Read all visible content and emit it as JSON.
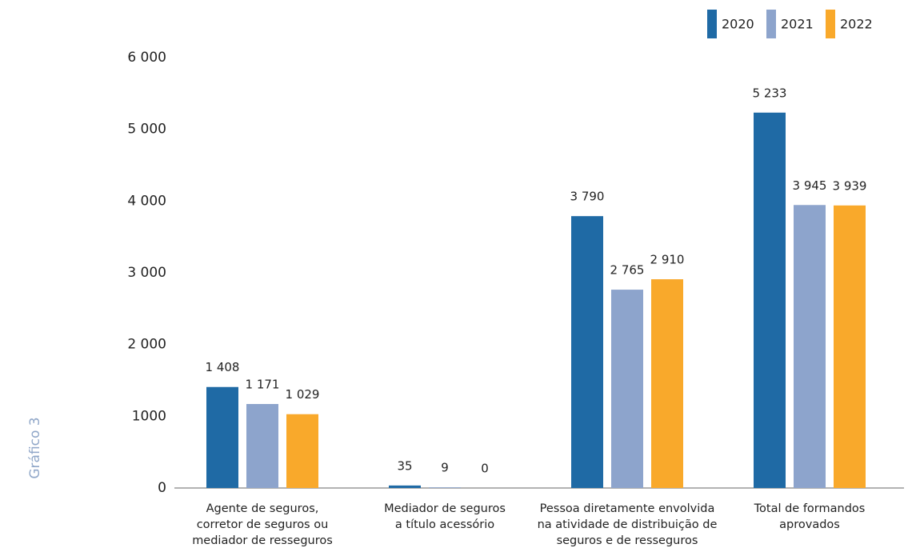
{
  "chart_data": {
    "type": "bar",
    "side_label": "Gráfico 3",
    "categories": [
      [
        "Agente de seguros,",
        "corretor de seguros ou",
        "mediador de resseguros"
      ],
      [
        "Mediador de seguros",
        "a título acessório"
      ],
      [
        "Pessoa diretamente envolvida",
        "na atividade de distribuição de",
        "seguros e de resseguros"
      ],
      [
        "Total de formandos",
        "aprovados"
      ]
    ],
    "series": [
      {
        "name": "2020",
        "color": "#1f6aa5",
        "values": [
          1408,
          35,
          3790,
          5233
        ],
        "value_labels": [
          "1 408",
          "35",
          "3 790",
          "5 233"
        ]
      },
      {
        "name": "2021",
        "color": "#8da4cc",
        "values": [
          1171,
          9,
          2765,
          3945
        ],
        "value_labels": [
          "1 171",
          "9",
          "2 765",
          "3 945"
        ]
      },
      {
        "name": "2022",
        "color": "#f9a92b",
        "values": [
          1029,
          0,
          2910,
          3939
        ],
        "value_labels": [
          "1 029",
          "0",
          "2 910",
          "3 939"
        ]
      }
    ],
    "ylim": [
      0,
      6000
    ],
    "yticks": [
      0,
      1000,
      {
        "value": 2000,
        "label": "2 000"
      },
      {
        "value": 3000,
        "label": "3 000"
      },
      {
        "value": 4000,
        "label": "4 000"
      },
      {
        "value": 5000,
        "label": "5 000"
      },
      {
        "value": 6000,
        "label": "6 000"
      }
    ],
    "grid": false,
    "legend": "top-right"
  }
}
